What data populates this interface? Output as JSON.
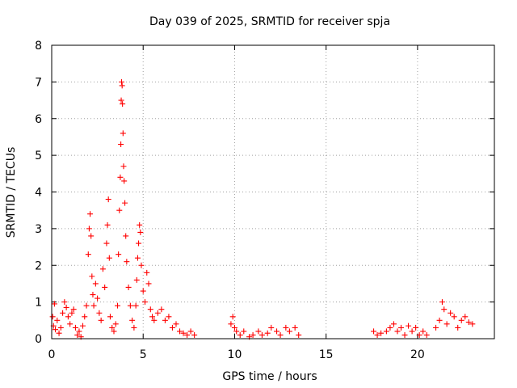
{
  "chart_data": {
    "type": "scatter",
    "title": "Day 039 of 2025, SRMTID for receiver spja",
    "xlabel": "GPS time / hours",
    "ylabel": "SRMTID / TECUs",
    "xlim": [
      0,
      24.2
    ],
    "ylim": [
      0,
      8
    ],
    "xticks": [
      0,
      5,
      10,
      15,
      20
    ],
    "yticks": [
      0,
      1,
      2,
      3,
      4,
      5,
      6,
      7,
      8
    ],
    "grid": true,
    "marker": "+",
    "series_color": "#ff0000",
    "series": [
      {
        "name": "SRMTID",
        "points": [
          [
            0.05,
            0.6
          ],
          [
            0.1,
            0.35
          ],
          [
            0.15,
            0.95
          ],
          [
            0.2,
            0.25
          ],
          [
            0.3,
            0.5
          ],
          [
            0.4,
            0.15
          ],
          [
            0.5,
            0.3
          ],
          [
            0.6,
            0.7
          ],
          [
            0.7,
            1.0
          ],
          [
            0.8,
            0.85
          ],
          [
            0.9,
            0.6
          ],
          [
            1.0,
            0.4
          ],
          [
            1.1,
            0.7
          ],
          [
            1.2,
            0.8
          ],
          [
            1.3,
            0.3
          ],
          [
            1.4,
            0.1
          ],
          [
            1.5,
            0.2
          ],
          [
            1.6,
            0.05
          ],
          [
            1.7,
            0.35
          ],
          [
            1.8,
            0.6
          ],
          [
            1.9,
            0.9
          ],
          [
            2.0,
            2.3
          ],
          [
            2.05,
            3.0
          ],
          [
            2.1,
            3.4
          ],
          [
            2.15,
            2.8
          ],
          [
            2.2,
            1.7
          ],
          [
            2.25,
            1.2
          ],
          [
            2.3,
            0.9
          ],
          [
            2.4,
            1.5
          ],
          [
            2.5,
            1.1
          ],
          [
            2.6,
            0.7
          ],
          [
            2.7,
            0.5
          ],
          [
            2.8,
            1.9
          ],
          [
            2.9,
            1.4
          ],
          [
            3.0,
            2.6
          ],
          [
            3.05,
            3.1
          ],
          [
            3.1,
            3.8
          ],
          [
            3.15,
            2.2
          ],
          [
            3.2,
            0.6
          ],
          [
            3.3,
            0.3
          ],
          [
            3.4,
            0.2
          ],
          [
            3.5,
            0.4
          ],
          [
            3.6,
            0.9
          ],
          [
            3.65,
            2.3
          ],
          [
            3.7,
            3.5
          ],
          [
            3.75,
            4.4
          ],
          [
            3.78,
            5.3
          ],
          [
            3.8,
            6.5
          ],
          [
            3.82,
            7.0
          ],
          [
            3.85,
            6.9
          ],
          [
            3.87,
            6.4
          ],
          [
            3.9,
            5.6
          ],
          [
            3.93,
            4.7
          ],
          [
            3.96,
            4.3
          ],
          [
            4.0,
            3.7
          ],
          [
            4.05,
            2.8
          ],
          [
            4.1,
            2.1
          ],
          [
            4.2,
            1.4
          ],
          [
            4.3,
            0.9
          ],
          [
            4.4,
            0.5
          ],
          [
            4.5,
            0.3
          ],
          [
            4.6,
            0.9
          ],
          [
            4.65,
            1.6
          ],
          [
            4.7,
            2.2
          ],
          [
            4.75,
            2.6
          ],
          [
            4.8,
            3.1
          ],
          [
            4.85,
            2.9
          ],
          [
            4.9,
            2.0
          ],
          [
            5.0,
            1.3
          ],
          [
            5.1,
            1.0
          ],
          [
            5.2,
            1.8
          ],
          [
            5.3,
            1.5
          ],
          [
            5.4,
            0.8
          ],
          [
            5.5,
            0.6
          ],
          [
            5.6,
            0.5
          ],
          [
            5.8,
            0.7
          ],
          [
            6.0,
            0.8
          ],
          [
            6.2,
            0.5
          ],
          [
            6.4,
            0.6
          ],
          [
            6.6,
            0.3
          ],
          [
            6.8,
            0.4
          ],
          [
            7.0,
            0.2
          ],
          [
            7.2,
            0.15
          ],
          [
            7.4,
            0.1
          ],
          [
            7.6,
            0.2
          ],
          [
            7.8,
            0.1
          ],
          [
            9.8,
            0.4
          ],
          [
            9.9,
            0.6
          ],
          [
            10.0,
            0.3
          ],
          [
            10.1,
            0.2
          ],
          [
            10.3,
            0.1
          ],
          [
            10.5,
            0.2
          ],
          [
            10.8,
            0.05
          ],
          [
            11.0,
            0.1
          ],
          [
            11.3,
            0.2
          ],
          [
            11.5,
            0.1
          ],
          [
            11.8,
            0.15
          ],
          [
            12.0,
            0.3
          ],
          [
            12.3,
            0.2
          ],
          [
            12.5,
            0.1
          ],
          [
            12.8,
            0.3
          ],
          [
            13.0,
            0.2
          ],
          [
            13.3,
            0.3
          ],
          [
            13.5,
            0.1
          ],
          [
            17.6,
            0.2
          ],
          [
            17.8,
            0.1
          ],
          [
            18.0,
            0.15
          ],
          [
            18.3,
            0.2
          ],
          [
            18.5,
            0.3
          ],
          [
            18.7,
            0.4
          ],
          [
            18.9,
            0.2
          ],
          [
            19.1,
            0.3
          ],
          [
            19.3,
            0.1
          ],
          [
            19.5,
            0.35
          ],
          [
            19.7,
            0.2
          ],
          [
            19.9,
            0.3
          ],
          [
            20.1,
            0.1
          ],
          [
            20.3,
            0.2
          ],
          [
            20.5,
            0.1
          ],
          [
            21.0,
            0.3
          ],
          [
            21.2,
            0.5
          ],
          [
            21.35,
            1.0
          ],
          [
            21.45,
            0.8
          ],
          [
            21.6,
            0.4
          ],
          [
            21.8,
            0.7
          ],
          [
            22.0,
            0.6
          ],
          [
            22.2,
            0.3
          ],
          [
            22.4,
            0.5
          ],
          [
            22.6,
            0.6
          ],
          [
            22.8,
            0.45
          ],
          [
            23.0,
            0.4
          ]
        ]
      }
    ]
  }
}
